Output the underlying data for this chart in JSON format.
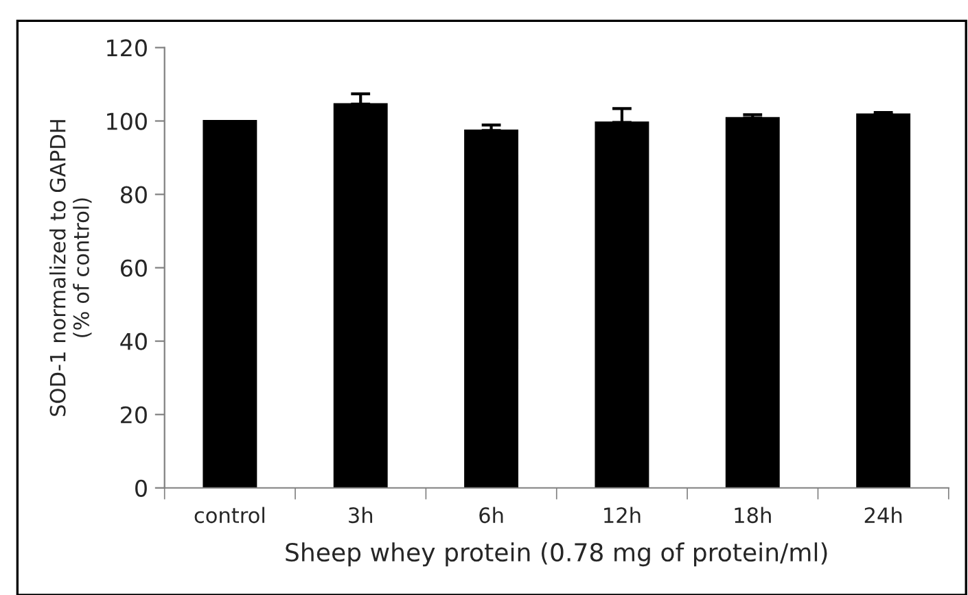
{
  "chart_data": {
    "type": "bar",
    "xlabel": "Sheep whey protein (0.78 mg of protein/ml)",
    "ylabel": "SOD-1 normalized to GAPDH\n(% of control)",
    "categories": [
      "control",
      "3h",
      "6h",
      "12h",
      "18h",
      "24h"
    ],
    "values": [
      100,
      104.6,
      97.4,
      99.6,
      100.8,
      101.8
    ],
    "errors": [
      null,
      [
        104.6,
        107.4
      ],
      [
        97.4,
        98.9
      ],
      [
        99.6,
        103.4
      ],
      [
        100.8,
        101.7
      ],
      [
        101.8,
        102.3
      ]
    ],
    "color": "#000000",
    "ylim": [
      0,
      120
    ],
    "yticks": [
      0,
      20,
      40,
      60,
      80,
      100,
      120
    ],
    "grid": false,
    "legend": false
  }
}
